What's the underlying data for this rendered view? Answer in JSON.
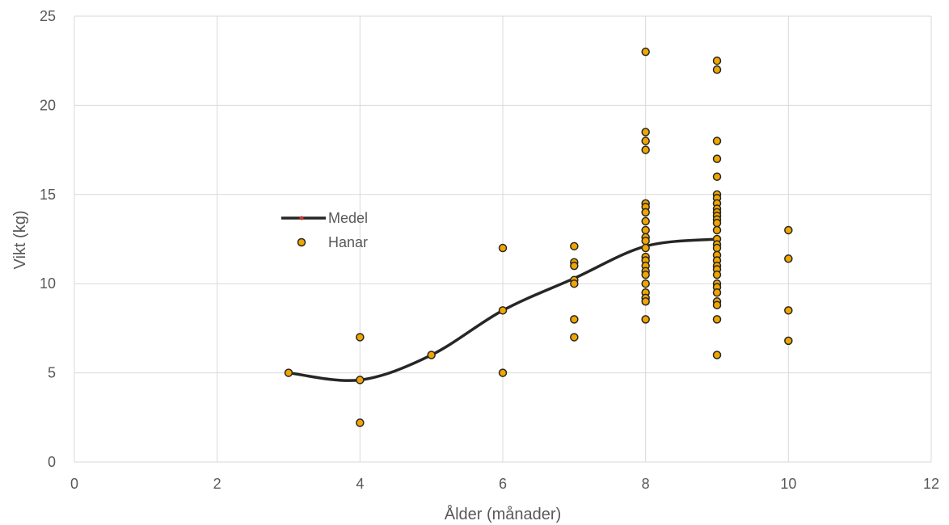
{
  "chart_data": {
    "type": "scatter",
    "xlabel": "Ålder (månader)",
    "ylabel": "Vikt (kg)",
    "xlim": [
      0,
      12
    ],
    "ylim": [
      0,
      25
    ],
    "x_ticks": [
      0,
      2,
      4,
      6,
      8,
      10,
      12
    ],
    "y_ticks": [
      0,
      5,
      10,
      15,
      20,
      25
    ],
    "grid": true,
    "legend": {
      "placement": "center-left"
    },
    "series": [
      {
        "name": "Medel",
        "type": "line",
        "smooth": true,
        "color": "#262626",
        "marker_color": "#c0392b",
        "points": [
          {
            "x": 3,
            "y": 5.0
          },
          {
            "x": 4,
            "y": 4.6
          },
          {
            "x": 5,
            "y": 6.0
          },
          {
            "x": 6,
            "y": 8.5
          },
          {
            "x": 7,
            "y": 10.3
          },
          {
            "x": 8,
            "y": 12.1
          },
          {
            "x": 9,
            "y": 12.5
          }
        ]
      },
      {
        "name": "Hanar",
        "type": "scatter",
        "color": "#f0a500",
        "edge_color": "#262626",
        "points": [
          {
            "x": 3,
            "y": 5.0
          },
          {
            "x": 4,
            "y": 7.0
          },
          {
            "x": 4,
            "y": 4.6
          },
          {
            "x": 4,
            "y": 2.2
          },
          {
            "x": 5,
            "y": 6.0
          },
          {
            "x": 6,
            "y": 12.0
          },
          {
            "x": 6,
            "y": 8.5
          },
          {
            "x": 6,
            "y": 5.0
          },
          {
            "x": 7,
            "y": 12.1
          },
          {
            "x": 7,
            "y": 11.2
          },
          {
            "x": 7,
            "y": 11.0
          },
          {
            "x": 7,
            "y": 10.2
          },
          {
            "x": 7,
            "y": 10.0
          },
          {
            "x": 7,
            "y": 8.0
          },
          {
            "x": 7,
            "y": 7.0
          },
          {
            "x": 8,
            "y": 23.0
          },
          {
            "x": 8,
            "y": 18.5
          },
          {
            "x": 8,
            "y": 18.0
          },
          {
            "x": 8,
            "y": 17.5
          },
          {
            "x": 8,
            "y": 14.5
          },
          {
            "x": 8,
            "y": 14.3
          },
          {
            "x": 8,
            "y": 14.0
          },
          {
            "x": 8,
            "y": 13.5
          },
          {
            "x": 8,
            "y": 13.0
          },
          {
            "x": 8,
            "y": 12.6
          },
          {
            "x": 8,
            "y": 12.4
          },
          {
            "x": 8,
            "y": 12.0
          },
          {
            "x": 8,
            "y": 11.5
          },
          {
            "x": 8,
            "y": 11.3
          },
          {
            "x": 8,
            "y": 11.0
          },
          {
            "x": 8,
            "y": 10.7
          },
          {
            "x": 8,
            "y": 10.5
          },
          {
            "x": 8,
            "y": 10.0
          },
          {
            "x": 8,
            "y": 9.5
          },
          {
            "x": 8,
            "y": 9.2
          },
          {
            "x": 8,
            "y": 9.0
          },
          {
            "x": 8,
            "y": 8.0
          },
          {
            "x": 9,
            "y": 22.5
          },
          {
            "x": 9,
            "y": 22.0
          },
          {
            "x": 9,
            "y": 18.0
          },
          {
            "x": 9,
            "y": 17.0
          },
          {
            "x": 9,
            "y": 16.0
          },
          {
            "x": 9,
            "y": 15.0
          },
          {
            "x": 9,
            "y": 14.8
          },
          {
            "x": 9,
            "y": 14.5
          },
          {
            "x": 9,
            "y": 14.2
          },
          {
            "x": 9,
            "y": 14.0
          },
          {
            "x": 9,
            "y": 13.8
          },
          {
            "x": 9,
            "y": 13.6
          },
          {
            "x": 9,
            "y": 13.4
          },
          {
            "x": 9,
            "y": 13.0
          },
          {
            "x": 9,
            "y": 12.5
          },
          {
            "x": 9,
            "y": 12.2
          },
          {
            "x": 9,
            "y": 12.0
          },
          {
            "x": 9,
            "y": 11.6
          },
          {
            "x": 9,
            "y": 11.3
          },
          {
            "x": 9,
            "y": 11.0
          },
          {
            "x": 9,
            "y": 10.8
          },
          {
            "x": 9,
            "y": 10.5
          },
          {
            "x": 9,
            "y": 10.0
          },
          {
            "x": 9,
            "y": 9.8
          },
          {
            "x": 9,
            "y": 9.5
          },
          {
            "x": 9,
            "y": 9.0
          },
          {
            "x": 9,
            "y": 8.8
          },
          {
            "x": 9,
            "y": 8.0
          },
          {
            "x": 9,
            "y": 6.0
          },
          {
            "x": 10,
            "y": 13.0
          },
          {
            "x": 10,
            "y": 11.4
          },
          {
            "x": 10,
            "y": 8.5
          },
          {
            "x": 10,
            "y": 6.8
          }
        ]
      }
    ]
  }
}
